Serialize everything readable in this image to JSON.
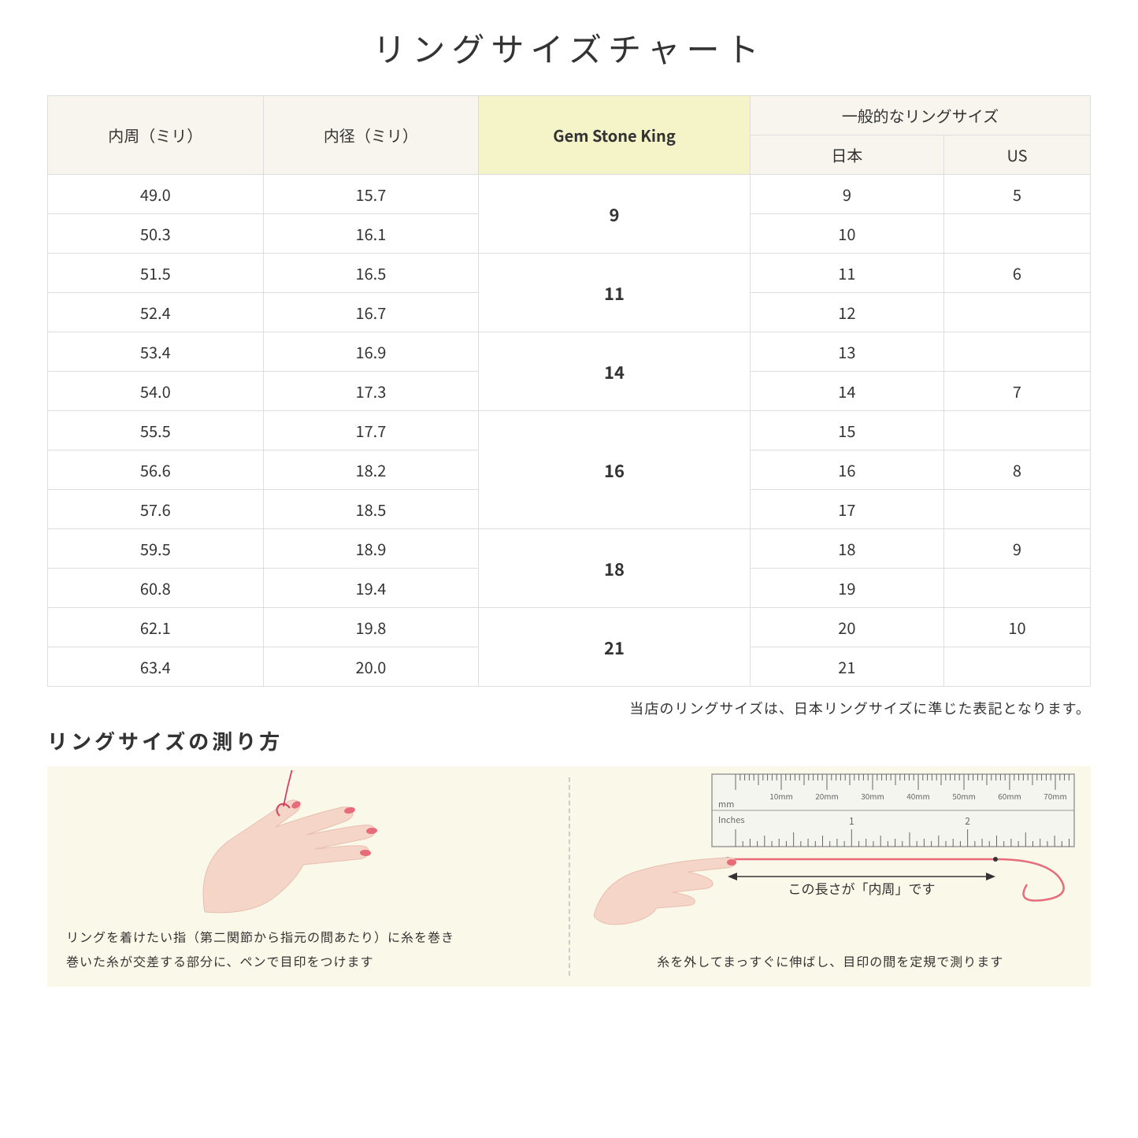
{
  "title": "リングサイズチャート",
  "headers": {
    "circumference": "内周（ミリ）",
    "diameter": "内径（ミリ）",
    "gsk": "Gem Stone King",
    "common": "一般的なリングサイズ",
    "japan": "日本",
    "us": "US"
  },
  "groups": [
    {
      "gsk": "9",
      "rows": [
        {
          "c": "49.0",
          "d": "15.7",
          "jp": "9",
          "us": "5"
        },
        {
          "c": "50.3",
          "d": "16.1",
          "jp": "10",
          "us": ""
        }
      ]
    },
    {
      "gsk": "11",
      "rows": [
        {
          "c": "51.5",
          "d": "16.5",
          "jp": "11",
          "us": "6"
        },
        {
          "c": "52.4",
          "d": "16.7",
          "jp": "12",
          "us": ""
        }
      ]
    },
    {
      "gsk": "14",
      "rows": [
        {
          "c": "53.4",
          "d": "16.9",
          "jp": "13",
          "us": ""
        },
        {
          "c": "54.0",
          "d": "17.3",
          "jp": "14",
          "us": "7"
        }
      ]
    },
    {
      "gsk": "16",
      "rows": [
        {
          "c": "55.5",
          "d": "17.7",
          "jp": "15",
          "us": ""
        },
        {
          "c": "56.6",
          "d": "18.2",
          "jp": "16",
          "us": "8"
        },
        {
          "c": "57.6",
          "d": "18.5",
          "jp": "17",
          "us": ""
        }
      ]
    },
    {
      "gsk": "18",
      "rows": [
        {
          "c": "59.5",
          "d": "18.9",
          "jp": "18",
          "us": "9"
        },
        {
          "c": "60.8",
          "d": "19.4",
          "jp": "19",
          "us": ""
        }
      ]
    },
    {
      "gsk": "21",
      "rows": [
        {
          "c": "62.1",
          "d": "19.8",
          "jp": "20",
          "us": "10"
        },
        {
          "c": "63.4",
          "d": "20.0",
          "jp": "21",
          "us": ""
        }
      ]
    }
  ],
  "note": "当店のリングサイズは、日本リングサイズに準じた表記となります。",
  "subtitle": "リングサイズの測り方",
  "panel1_line1": "リングを着けたい指（第二関節から指元の間あたり）に糸を巻き",
  "panel1_line2": "巻いた糸が交差する部分に、ペンで目印をつけます",
  "panel2_label": "この長さが「内周」です",
  "panel2_text": "糸を外してまっすぐに伸ばし、目印の間を定規で測ります",
  "ruler": {
    "mm_label": "mm",
    "inches_label": "Inches",
    "mm_ticks": [
      "10mm",
      "20mm",
      "30mm",
      "40mm",
      "50mm",
      "60mm",
      "70mm"
    ],
    "inch_ticks": [
      "1",
      "2"
    ]
  },
  "colors": {
    "header_bg": "#f7f5ee",
    "highlight_bg": "#f5f3c8",
    "border": "#dddddd",
    "instruction_bg": "#faf8e8",
    "skin": "#f5d5c8",
    "skin_dark": "#e8beb0",
    "nail": "#e86b7a",
    "thread": "#d43f5e",
    "ruler_body": "#f5f5f0",
    "ruler_stroke": "#999999"
  }
}
